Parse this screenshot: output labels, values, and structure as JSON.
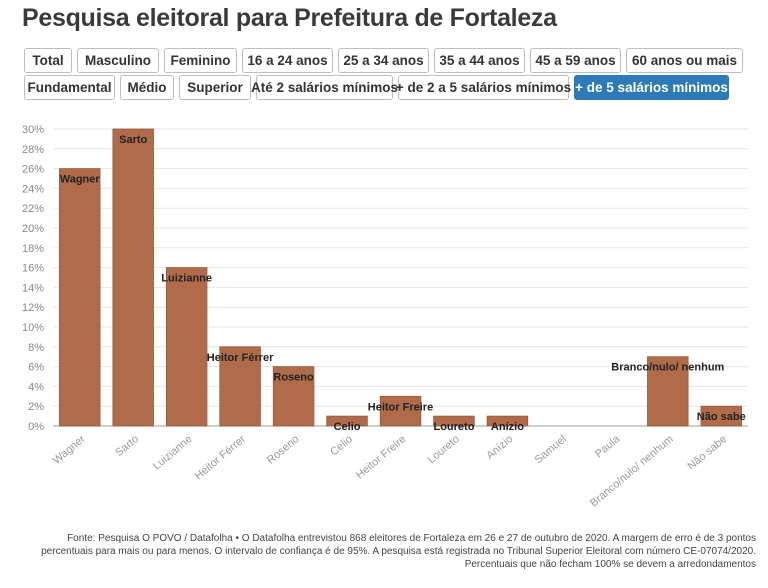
{
  "page": {
    "title": "Pesquisa eleitoral para Prefeitura de Fortaleza",
    "footnote": "Fonte: Pesquisa O POVO / Datafolha • O Datafolha entrevistou 868 eleitores de Fortaleza em 26 e 27 de outubro de 2020. A margem de erro é de 3 pontos percentuais para mais ou para menos. O intervalo de confiança é de 95%. A pesquisa está registrada no Tribunal Superior Eleitoral com número CE-07074/2020. Percentuais que não fecham 100% se devem a arredondamentos"
  },
  "filters": {
    "row1": [
      "Total",
      "Masculino",
      "Feminino",
      "16 a 24 anos",
      "25 a 34 anos",
      "35 a 44 anos",
      "45 a 59 anos",
      "60 anos ou mais"
    ],
    "row2": [
      "Fundamental",
      "Médio",
      "Superior",
      "Até 2 salários mínimos",
      "+ de 2 a 5 salários mínimos",
      "+ de 5 salários mínimos"
    ],
    "active": "+ de 5 salários mínimos"
  },
  "colors": {
    "bar": "#b06c4a",
    "active_button": "#2e79b8",
    "grid": "#e6e6e6"
  },
  "chart_data": {
    "type": "bar",
    "title": "",
    "xlabel": "",
    "ylabel": "",
    "categories": [
      "Wagner",
      "Sarto",
      "Luizianne",
      "Heitor Férrer",
      "Roseno",
      "Celio",
      "Heitor Freire",
      "Loureto",
      "Anízio",
      "Samuel",
      "Paula",
      "Branco/nulo/ nenhum",
      "Não sabe"
    ],
    "values": [
      26,
      30,
      16,
      8,
      6,
      1,
      3,
      1,
      1,
      0,
      0,
      7,
      2
    ],
    "ylim": [
      0,
      30
    ],
    "yticks": [
      0,
      2,
      4,
      6,
      8,
      10,
      12,
      14,
      16,
      18,
      20,
      22,
      24,
      26,
      28,
      30
    ],
    "ytick_suffix": "%",
    "grid": true,
    "legend": "none",
    "data_labels": "category name inside top of each bar"
  }
}
